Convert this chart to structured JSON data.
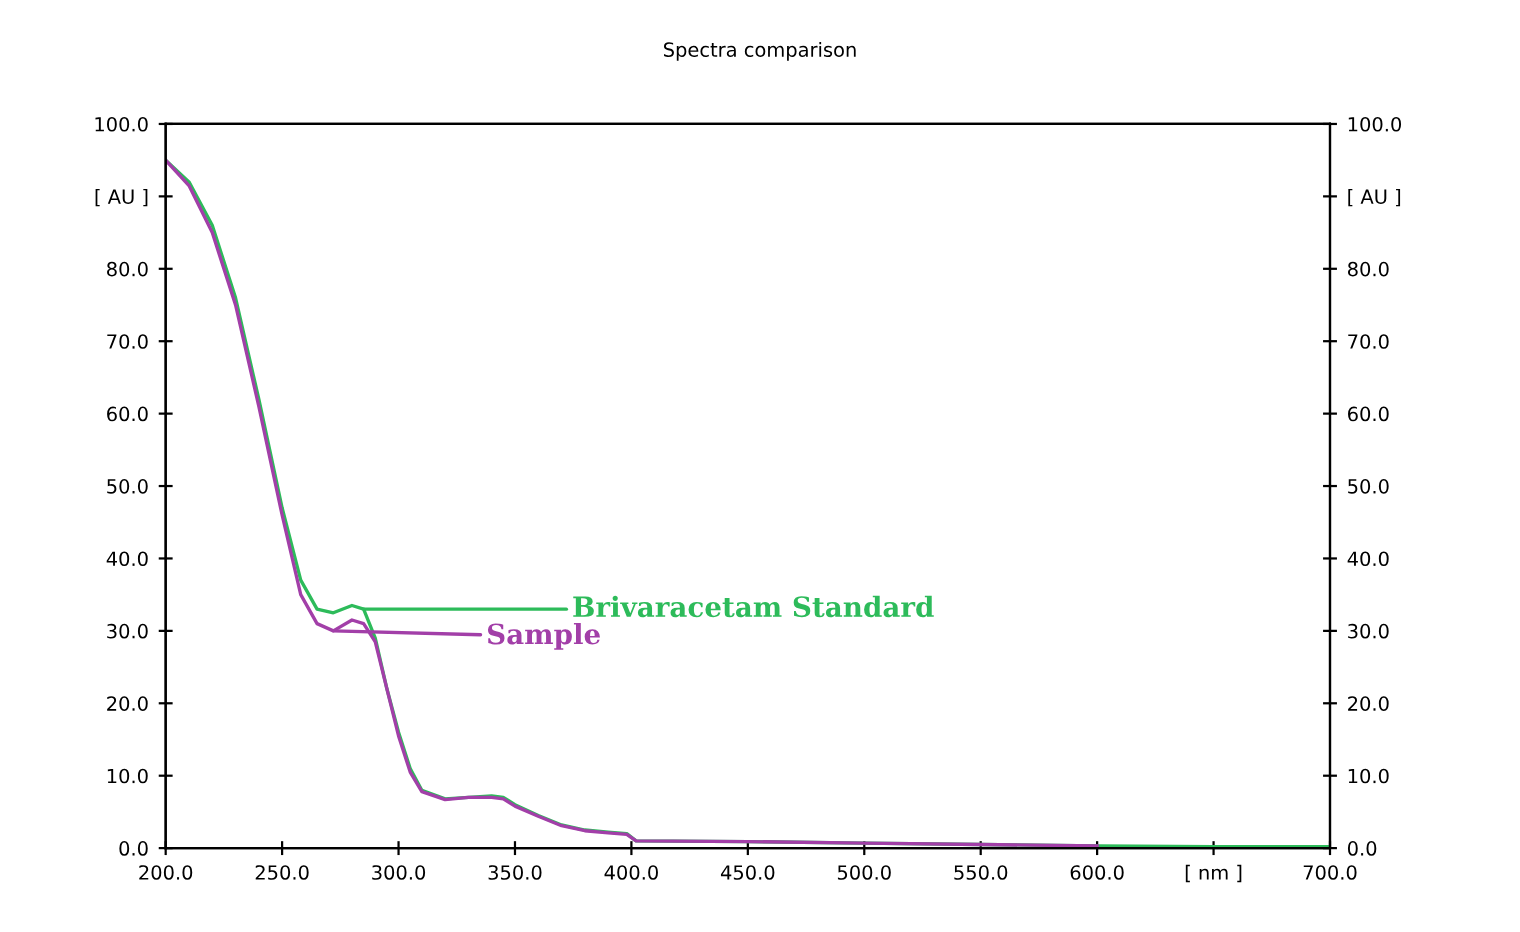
{
  "chart_data": {
    "type": "line",
    "title": "Spectra comparison",
    "xlim": [
      200,
      700
    ],
    "xticks": [
      {
        "value": 200,
        "label": "200.0"
      },
      {
        "value": 250,
        "label": "250.0"
      },
      {
        "value": 300,
        "label": "300.0"
      },
      {
        "value": 350,
        "label": "350.0"
      },
      {
        "value": 400,
        "label": "400.0"
      },
      {
        "value": 450,
        "label": "450.0"
      },
      {
        "value": 500,
        "label": "500.0"
      },
      {
        "value": 550,
        "label": "550.0"
      },
      {
        "value": 600,
        "label": "600.0"
      },
      {
        "value": 650,
        "label": "[ nm ]"
      },
      {
        "value": 700,
        "label": "700.0"
      }
    ],
    "ylim": [
      0,
      100
    ],
    "yticks": [
      {
        "value": 0,
        "label": "0.0"
      },
      {
        "value": 10,
        "label": "10.0"
      },
      {
        "value": 20,
        "label": "20.0"
      },
      {
        "value": 30,
        "label": "30.0"
      },
      {
        "value": 40,
        "label": "40.0"
      },
      {
        "value": 50,
        "label": "50.0"
      },
      {
        "value": 60,
        "label": "60.0"
      },
      {
        "value": 70,
        "label": "70.0"
      },
      {
        "value": 80,
        "label": "80.0"
      },
      {
        "value": 90,
        "label": "[ AU ]"
      },
      {
        "value": 100,
        "label": "100.0"
      }
    ],
    "y2lim": [
      0,
      100
    ],
    "y2ticks": [
      {
        "value": 0,
        "label": "0.0"
      },
      {
        "value": 10,
        "label": "10.0"
      },
      {
        "value": 20,
        "label": "20.0"
      },
      {
        "value": 30,
        "label": "30.0"
      },
      {
        "value": 40,
        "label": "40.0"
      },
      {
        "value": 50,
        "label": "50.0"
      },
      {
        "value": 60,
        "label": "60.0"
      },
      {
        "value": 70,
        "label": "70.0"
      },
      {
        "value": 80,
        "label": "80.0"
      },
      {
        "value": 90,
        "label": "[ AU ]"
      },
      {
        "value": 100,
        "label": "100.0"
      }
    ],
    "grid": false,
    "legend": "center left",
    "marker": "none",
    "line_style": "solid",
    "series": [
      {
        "name": "Brivaracetam Standard",
        "color": "#2dbb5a",
        "x": [
          200,
          210,
          220,
          230,
          240,
          250,
          258,
          265,
          272,
          280,
          285,
          290,
          295,
          300,
          305,
          310,
          320,
          330,
          340,
          345,
          350,
          360,
          370,
          380,
          390,
          398,
          402,
          450,
          500,
          550,
          600,
          650,
          700
        ],
        "values": [
          95,
          92,
          86,
          76,
          62,
          47,
          37,
          33,
          32.5,
          33.5,
          33,
          29,
          22,
          16,
          11,
          8,
          6.8,
          7,
          7.2,
          7,
          6,
          4.5,
          3.2,
          2.5,
          2.2,
          2,
          1,
          0.9,
          0.7,
          0.5,
          0.3,
          0.2,
          0.2
        ]
      },
      {
        "name": "Sample",
        "color": "#a23fa8",
        "x": [
          200,
          210,
          220,
          230,
          240,
          250,
          258,
          265,
          272,
          280,
          285,
          290,
          295,
          300,
          305,
          310,
          320,
          330,
          340,
          345,
          350,
          360,
          370,
          380,
          390,
          398,
          402,
          450,
          500,
          550,
          600
        ],
        "values": [
          95,
          91.5,
          85,
          75,
          61,
          46,
          35,
          31,
          30,
          31.5,
          31,
          28.5,
          22,
          15.5,
          10.5,
          7.8,
          6.7,
          7,
          7,
          6.8,
          5.8,
          4.4,
          3.1,
          2.4,
          2.1,
          1.9,
          1,
          0.9,
          0.7,
          0.5,
          0.3
        ]
      }
    ]
  }
}
